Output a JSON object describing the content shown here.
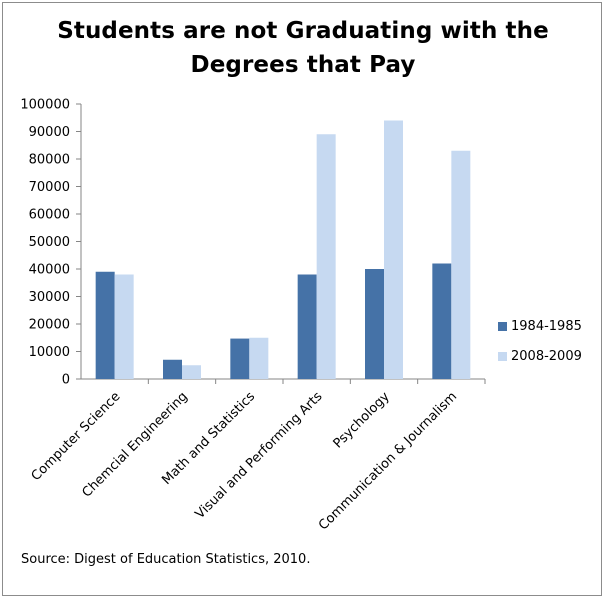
{
  "title": {
    "line1": "Students are not Graduating with the",
    "line2": "Degrees that Pay"
  },
  "source": "Source: Digest of Education Statistics, 2010.",
  "colors": {
    "series1": "#4572a7",
    "series2": "#c6d9f1",
    "axis": "#868686"
  },
  "chart_data": {
    "type": "bar",
    "title": "Students are not Graduating with the Degrees that Pay",
    "xlabel": "",
    "ylabel": "",
    "categories": [
      "Computer Science",
      "Chemcial Engineering",
      "Math and Statistics",
      "Visual and Performing Arts",
      "Psychology",
      "Communication & Journalism"
    ],
    "series": [
      {
        "name": "1984-1985",
        "values": [
          39000,
          7000,
          14700,
          38000,
          40000,
          42000
        ]
      },
      {
        "name": "2008-2009",
        "values": [
          38000,
          5000,
          15000,
          89000,
          94000,
          83000
        ]
      }
    ],
    "ylim": [
      0,
      100000
    ],
    "yticks": [
      0,
      10000,
      20000,
      30000,
      40000,
      50000,
      60000,
      70000,
      80000,
      90000,
      100000
    ],
    "grid": false,
    "legend": "right"
  }
}
